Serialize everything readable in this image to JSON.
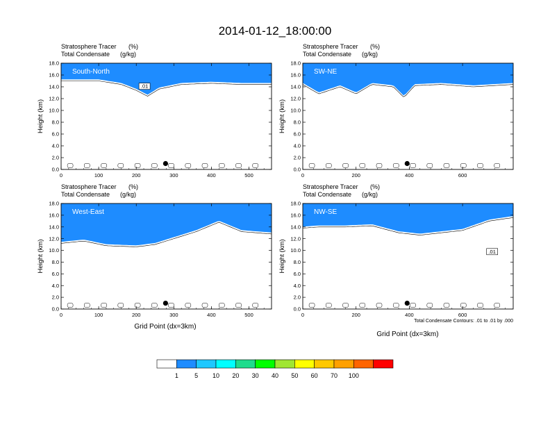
{
  "figure": {
    "title": "2014-01-12_18:00:00",
    "x_axis_label": "Grid Point (dx=3km)",
    "contour_note": "Total Condensate Contours: .01 to .01 by .000"
  },
  "colorbar": {
    "labels": [
      "1",
      "5",
      "10",
      "20",
      "30",
      "40",
      "50",
      "60",
      "70",
      "100"
    ],
    "colors": [
      "#ffffff",
      "#1e8cff",
      "#1ec8ff",
      "#00ffff",
      "#1edc8c",
      "#00ff00",
      "#a0e632",
      "#ffff00",
      "#ffc800",
      "#ffa000",
      "#ff6400",
      "#ff0000"
    ]
  },
  "chart_data": [
    {
      "type": "heatmap",
      "panel_name": "South-North",
      "left_title_1": "Stratosphere Tracer",
      "left_unit_1": "(%)",
      "left_title_2": "Total Condensate",
      "left_unit_2": "(g/kg)",
      "ylabel": "Height (km)",
      "xlabel": "",
      "xlim": [
        0,
        560
      ],
      "ylim": [
        0,
        18
      ],
      "xticks": [
        0,
        100,
        200,
        300,
        400,
        500
      ],
      "xtick_labels": [
        "0",
        "100",
        "200",
        "300",
        "400",
        "500"
      ],
      "yticks": [
        0,
        2,
        4,
        6,
        8,
        10,
        12,
        14,
        16,
        18
      ],
      "ytick_labels": [
        "0.0",
        "2.0",
        "4.0",
        "6.0",
        "8.0",
        "10.0",
        "12.0",
        "14.0",
        "16.0",
        "18.0"
      ],
      "tracer_base_km": [
        [
          0,
          15.6
        ],
        [
          100,
          15.6
        ],
        [
          160,
          15.0
        ],
        [
          200,
          14.0
        ],
        [
          230,
          13.0
        ],
        [
          260,
          14.2
        ],
        [
          320,
          15.0
        ],
        [
          400,
          15.2
        ],
        [
          480,
          15.0
        ],
        [
          560,
          15.0
        ]
      ],
      "contour_label": ".01",
      "marker": {
        "x": 278,
        "y": 1.0
      }
    },
    {
      "type": "heatmap",
      "panel_name": "SW-NE",
      "left_title_1": "Stratosphere Tracer",
      "left_unit_1": "(%)",
      "left_title_2": "Total Condensate",
      "left_unit_2": "(g/kg)",
      "ylabel": "Height (km)",
      "xlabel": "",
      "xlim": [
        0,
        790
      ],
      "ylim": [
        0,
        18
      ],
      "xticks": [
        0,
        200,
        400,
        600
      ],
      "xtick_labels": [
        "0",
        "200",
        "400",
        "600"
      ],
      "yticks": [
        0,
        2,
        4,
        6,
        8,
        10,
        12,
        14,
        16,
        18
      ],
      "ytick_labels": [
        "0.0",
        "2.0",
        "4.0",
        "6.0",
        "8.0",
        "10.0",
        "12.0",
        "14.0",
        "16.0",
        "18.0"
      ],
      "tracer_base_km": [
        [
          0,
          15.0
        ],
        [
          60,
          13.4
        ],
        [
          140,
          14.6
        ],
        [
          200,
          13.4
        ],
        [
          260,
          15.0
        ],
        [
          340,
          14.6
        ],
        [
          380,
          12.8
        ],
        [
          420,
          14.8
        ],
        [
          520,
          15.0
        ],
        [
          640,
          14.6
        ],
        [
          790,
          15.0
        ]
      ],
      "contour_label": "",
      "marker": {
        "x": 392,
        "y": 1.0
      }
    },
    {
      "type": "heatmap",
      "panel_name": "West-East",
      "left_title_1": "Stratosphere Tracer",
      "left_unit_1": "(%)",
      "left_title_2": "Total Condensate",
      "left_unit_2": "(g/kg)",
      "ylabel": "Height (km)",
      "xlabel": "",
      "xlim": [
        0,
        560
      ],
      "ylim": [
        0,
        18
      ],
      "xticks": [
        0,
        100,
        200,
        300,
        400,
        500
      ],
      "xtick_labels": [
        "0",
        "100",
        "200",
        "300",
        "400",
        "500"
      ],
      "yticks": [
        0,
        2,
        4,
        6,
        8,
        10,
        12,
        14,
        16,
        18
      ],
      "ytick_labels": [
        "0.0",
        "2.0",
        "4.0",
        "6.0",
        "8.0",
        "10.0",
        "12.0",
        "14.0",
        "16.0",
        "18.0"
      ],
      "tracer_base_km": [
        [
          0,
          11.8
        ],
        [
          60,
          12.2
        ],
        [
          120,
          11.4
        ],
        [
          200,
          11.2
        ],
        [
          250,
          11.6
        ],
        [
          300,
          12.6
        ],
        [
          360,
          13.8
        ],
        [
          420,
          15.4
        ],
        [
          480,
          13.8
        ],
        [
          560,
          13.4
        ]
      ],
      "contour_label": "",
      "marker": {
        "x": 278,
        "y": 1.0
      }
    },
    {
      "type": "heatmap",
      "panel_name": "NW-SE",
      "left_title_1": "Stratosphere Tracer",
      "left_unit_1": "(%)",
      "left_title_2": "Total Condensate",
      "left_unit_2": "(g/kg)",
      "ylabel": "Height (km)",
      "xlabel": "",
      "xlim": [
        0,
        790
      ],
      "ylim": [
        0,
        18
      ],
      "xticks": [
        0,
        200,
        400,
        600
      ],
      "xtick_labels": [
        "0",
        "200",
        "400",
        "600"
      ],
      "yticks": [
        0,
        2,
        4,
        6,
        8,
        10,
        12,
        14,
        16,
        18
      ],
      "ytick_labels": [
        "0.0",
        "2.0",
        "4.0",
        "6.0",
        "8.0",
        "10.0",
        "12.0",
        "14.0",
        "16.0",
        "18.0"
      ],
      "tracer_base_km": [
        [
          0,
          14.4
        ],
        [
          60,
          14.6
        ],
        [
          160,
          14.6
        ],
        [
          260,
          14.8
        ],
        [
          360,
          13.6
        ],
        [
          440,
          13.2
        ],
        [
          520,
          13.6
        ],
        [
          600,
          14.0
        ],
        [
          700,
          15.6
        ],
        [
          790,
          16.2
        ]
      ],
      "contour_label": ".01",
      "marker": {
        "x": 392,
        "y": 1.0
      }
    }
  ]
}
